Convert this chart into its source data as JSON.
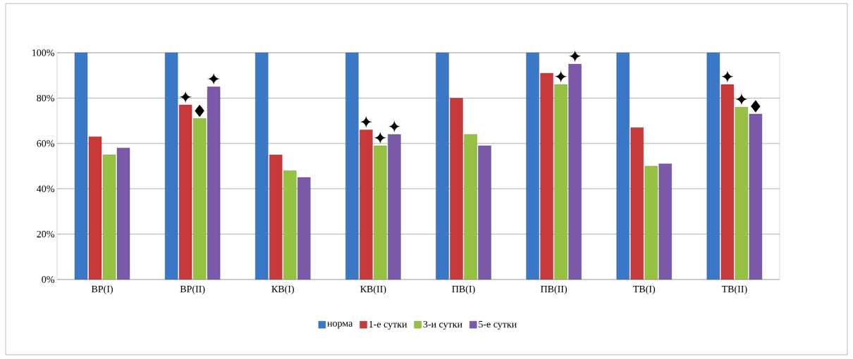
{
  "chart_data": {
    "type": "bar",
    "categories": [
      "ВР(I)",
      "ВР(II)",
      "КВ(I)",
      "КВ(II)",
      "ПВ(I)",
      "ПВ(II)",
      "ТВ(I)",
      "ТВ(II)"
    ],
    "series": [
      {
        "name": "норма",
        "color": "#3a78c6",
        "values": [
          100,
          100,
          100,
          100,
          100,
          100,
          100,
          100
        ]
      },
      {
        "name": "1-е сутки",
        "color": "#c8393a",
        "values": [
          63,
          77,
          55,
          66,
          80,
          91,
          67,
          86
        ],
        "value_labels": [
          null,
          "✦",
          null,
          "✦",
          null,
          null,
          null,
          "✦"
        ]
      },
      {
        "name": "3-и сутки",
        "color": "#96c243",
        "values": [
          55,
          71,
          48,
          59,
          64,
          86,
          50,
          76
        ],
        "value_labels": [
          null,
          "♦",
          null,
          "✦",
          null,
          "✦",
          null,
          "✦"
        ]
      },
      {
        "name": "5-е сутки",
        "color": "#7a59a7",
        "values": [
          58,
          85,
          45,
          64,
          59,
          95,
          51,
          73
        ],
        "value_labels": [
          null,
          "✦",
          null,
          "✦",
          null,
          "✦",
          null,
          "♦"
        ]
      }
    ],
    "ylim": [
      0,
      100
    ],
    "yticks": [
      {
        "value": 0,
        "label": "0%"
      },
      {
        "value": 20,
        "label": "20%"
      },
      {
        "value": 40,
        "label": "40%"
      },
      {
        "value": 60,
        "label": "60%"
      },
      {
        "value": 80,
        "label": "80%"
      },
      {
        "value": 100,
        "label": "100%"
      }
    ],
    "grid": "y",
    "legend": "bottom"
  }
}
